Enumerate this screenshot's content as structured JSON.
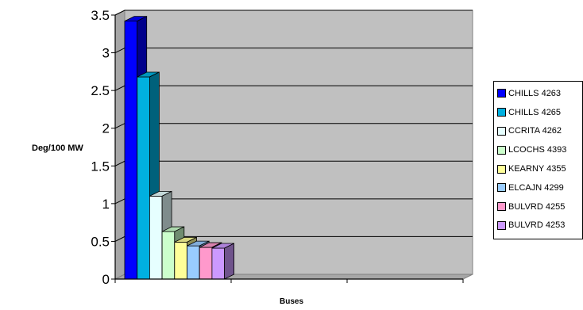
{
  "chart_data": {
    "type": "bar",
    "style": "3d-clustered-column",
    "ylabel": "Deg/100 MW",
    "xlabel": "Buses",
    "ylim": [
      0,
      3.5
    ],
    "yticks": [
      "0",
      "0.5",
      "1",
      "1.5",
      "2",
      "2.5",
      "3",
      "3.5"
    ],
    "grid": true,
    "legend_position": "right",
    "plot_background": "#c0c0c0",
    "series": [
      {
        "name": "CHILLS 4263",
        "value": 3.42,
        "color": "#0000ff"
      },
      {
        "name": "CHILLS 4265",
        "value": 2.68,
        "color": "#00b0e0"
      },
      {
        "name": "CCRITA 4262",
        "value": 1.1,
        "color": "#e6ffff"
      },
      {
        "name": "LCOCHS 4393",
        "value": 0.63,
        "color": "#ccffcc"
      },
      {
        "name": "KEARNY 4355",
        "value": 0.49,
        "color": "#ffff99"
      },
      {
        "name": "ELCAJN 4299",
        "value": 0.44,
        "color": "#99ccff"
      },
      {
        "name": "BULVRD 4255",
        "value": 0.42,
        "color": "#ff99cc"
      },
      {
        "name": "BULVRD 4253",
        "value": 0.41,
        "color": "#cc99ff"
      }
    ]
  }
}
